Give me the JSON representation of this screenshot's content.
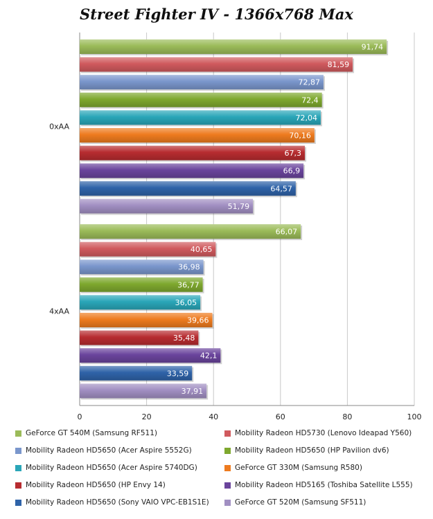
{
  "chart_data": {
    "type": "bar",
    "orientation": "horizontal",
    "title": "Street Fighter IV - 1366x768 Max",
    "categories": [
      "0xAA",
      "4xAA"
    ],
    "xlim": [
      0,
      100
    ],
    "xticks": [
      0,
      20,
      40,
      60,
      80,
      100
    ],
    "grid": true,
    "legend_position": "bottom",
    "series": [
      {
        "name": "GeForce GT 540M (Samsung RF511)",
        "color": "#9bbb59",
        "values": [
          91.74,
          66.07
        ],
        "labels": [
          "91,74",
          "66,07"
        ]
      },
      {
        "name": "Mobility Radeon HD5730 (Lenovo Ideapad Y560)",
        "color": "#d05a5e",
        "values": [
          81.59,
          40.65
        ],
        "labels": [
          "81,59",
          "40,65"
        ]
      },
      {
        "name": "Mobility Radeon HD5650 (Acer Aspire 5552G)",
        "color": "#7a96cc",
        "values": [
          72.87,
          36.98
        ],
        "labels": [
          "72,87",
          "36,98"
        ]
      },
      {
        "name": "Mobility Radeon HD5650 (HP Pavilion dv6)",
        "color": "#7ea82e",
        "values": [
          72.4,
          36.77
        ],
        "labels": [
          "72,4",
          "36,77"
        ]
      },
      {
        "name": "Mobility Radeon HD5650 (Acer Aspire 5740DG)",
        "color": "#2aa6b8",
        "values": [
          72.04,
          36.05
        ],
        "labels": [
          "72,04",
          "36,05"
        ]
      },
      {
        "name": "GeForce GT 330M (Samsung R580)",
        "color": "#ee7b1f",
        "values": [
          70.16,
          39.66
        ],
        "labels": [
          "70,16",
          "39,66"
        ]
      },
      {
        "name": "Mobility Radeon HD5650 (HP Envy 14)",
        "color": "#b72c30",
        "values": [
          67.3,
          35.48
        ],
        "labels": [
          "67,3",
          "35,48"
        ]
      },
      {
        "name": "Mobility Radeon HD5165 (Toshiba Satellite L555)",
        "color": "#6a449c",
        "values": [
          66.9,
          42.1
        ],
        "labels": [
          "66,9",
          "42,1"
        ]
      },
      {
        "name": "Mobility Radeon HD5650 (Sony VAIO VPC-EB1S1E)",
        "color": "#2f63a8",
        "values": [
          64.57,
          33.59
        ],
        "labels": [
          "64,57",
          "33,59"
        ]
      },
      {
        "name": "GeForce GT 520M (Samsung SF511)",
        "color": "#a18fc2",
        "values": [
          51.79,
          37.91
        ],
        "labels": [
          "51,79",
          "37,91"
        ]
      }
    ]
  }
}
